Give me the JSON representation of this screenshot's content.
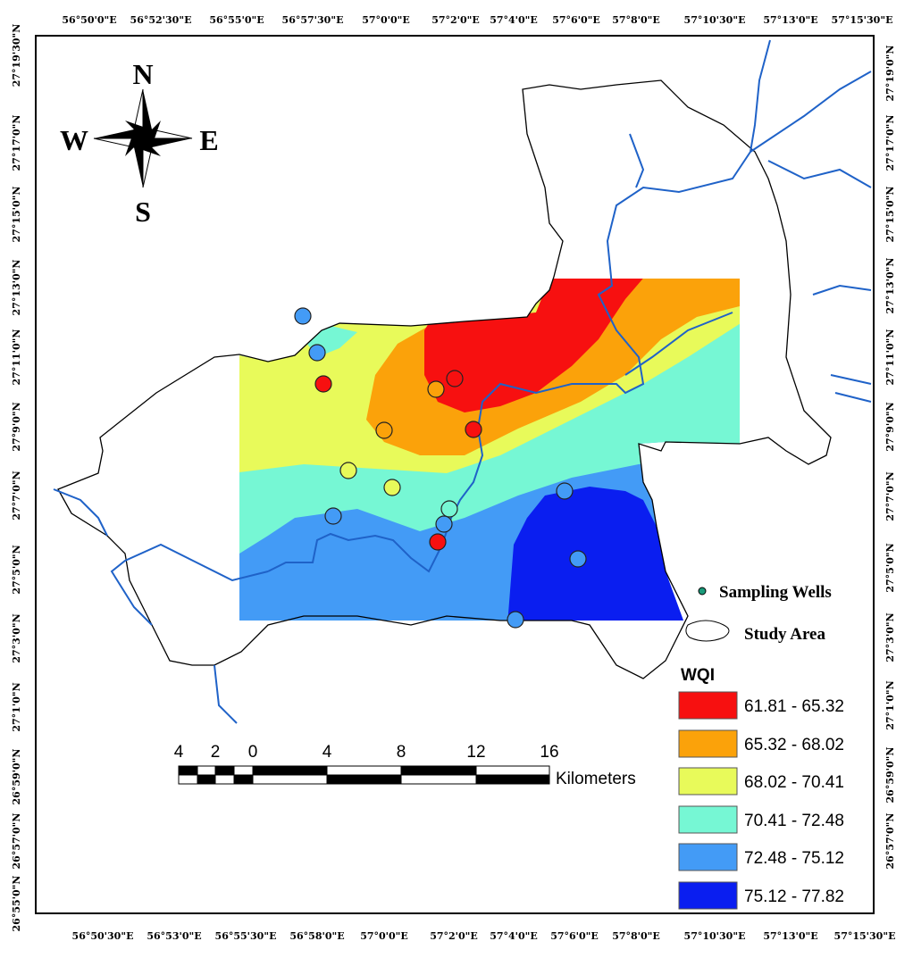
{
  "top_labels": [
    "56°50'0\"E",
    "56°52'30\"E",
    "56°55'0\"E",
    "56°57'30\"E",
    "57°0'0\"E",
    "57°2'0\"E",
    "57°4'0\"E",
    "57°6'0\"E",
    "57°8'0\"E",
    "57°10'30\"E",
    "57°13'0\"E",
    "57°15'30\"E"
  ],
  "bottom_labels": [
    "56°50'30\"E",
    "56°53'0\"E",
    "56°55'30\"E",
    "56°58'0\"E",
    "57°0'0\"E",
    "57°2'0\"E",
    "57°4'0\"E",
    "57°6'0\"E",
    "57°8'0\"E",
    "57°10'30\"E",
    "57°13'0\"E",
    "57°15'30\"E"
  ],
  "left_labels": [
    "27°19'30\"N",
    "27°17'0\"N",
    "27°15'0\"N",
    "27°13'0\"N",
    "27°11'0\"N",
    "27°9'0\"N",
    "27°7'0\"N",
    "27°5'0\"N",
    "27°3'0\"N",
    "27°1'0\"N",
    "26°59'0\"N",
    "26°57'0\"N",
    "26°55'0\"N"
  ],
  "right_labels": [
    "27°19'0\"N",
    "27°17'0\"N",
    "27°15'0\"N",
    "27°13'0\"N",
    "27°11'0\"N",
    "27°9'0\"N",
    "27°7'0\"N",
    "27°5'0\"N",
    "27°3'0\"N",
    "27°1'0\"N",
    "26°59'0\"N",
    "26°57'0\"N"
  ],
  "compass": {
    "north": "N",
    "south": "S",
    "east": "E",
    "west": "W"
  },
  "legend": {
    "wells": "Sampling Wells",
    "study_area": "Study Area",
    "title": "WQI",
    "classes": [
      {
        "label": "61.81 - 65.32",
        "color": "#f71010"
      },
      {
        "label": "65.32 - 68.02",
        "color": "#fba20a"
      },
      {
        "label": "68.02 - 70.41",
        "color": "#e8fa5a"
      },
      {
        "label": "70.41 - 72.48",
        "color": "#76f7d4"
      },
      {
        "label": "72.48 - 75.12",
        "color": "#439bf6"
      },
      {
        "label": "75.12 - 77.82",
        "color": "#0a1ef0"
      }
    ]
  },
  "scale": {
    "labels": [
      "4",
      "2",
      "0",
      "4",
      "8",
      "12",
      "16"
    ],
    "unit": "Kilometers"
  }
}
